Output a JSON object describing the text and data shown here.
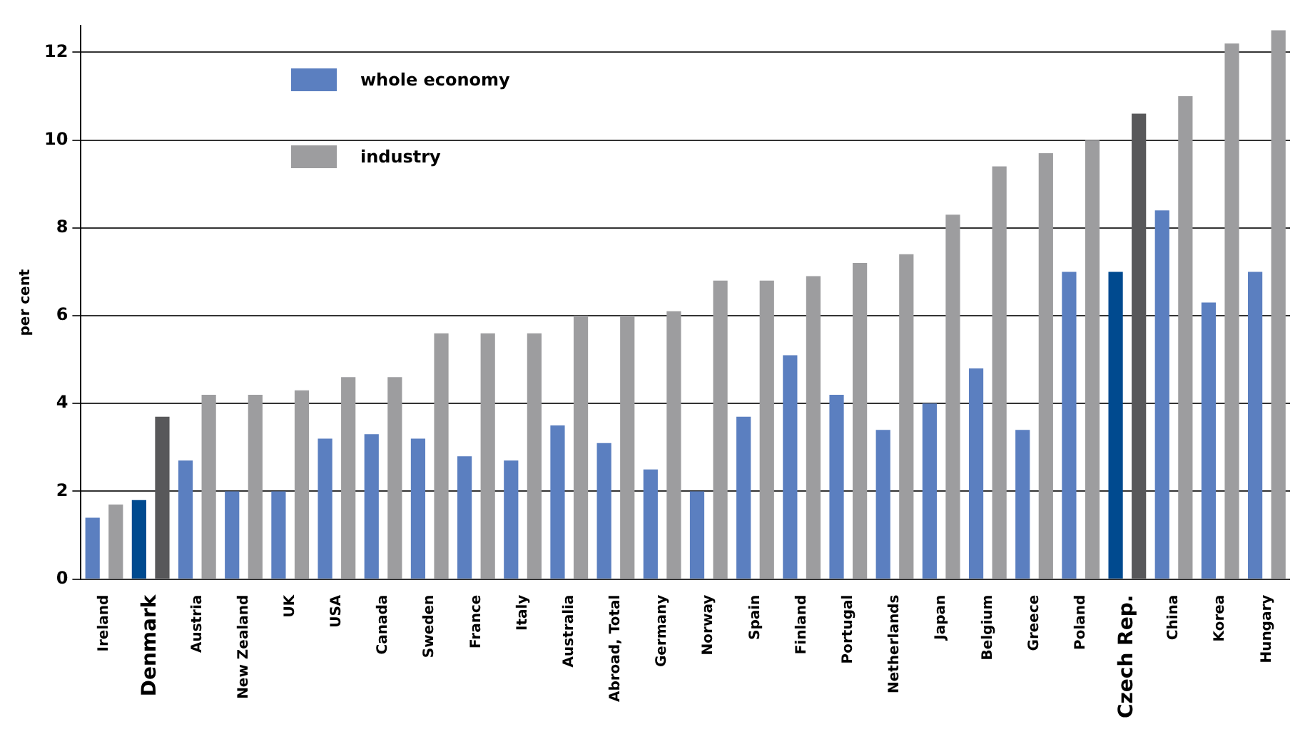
{
  "chart_data": {
    "type": "bar",
    "ylabel": "per cent",
    "categories": [
      "Ireland",
      "Denmark",
      "Austria",
      "New Zealand",
      "UK",
      "USA",
      "Canada",
      "Sweden",
      "France",
      "Italy",
      "Australia",
      "Abroad, Total",
      "Germany",
      "Norway",
      "Spain",
      "Finland",
      "Portugal",
      "Netherlands",
      "Japan",
      "Belgium",
      "Greece",
      "Poland",
      "Czech Rep.",
      "China",
      "Korea",
      "Hungary"
    ],
    "series": [
      {
        "name": "whole economy",
        "color": "#5b7fc0",
        "colors": [
          "#5b7fc0",
          "#004a8f",
          "#5b7fc0",
          "#5b7fc0",
          "#5b7fc0",
          "#5b7fc0",
          "#5b7fc0",
          "#5b7fc0",
          "#5b7fc0",
          "#5b7fc0",
          "#5b7fc0",
          "#5b7fc0",
          "#5b7fc0",
          "#5b7fc0",
          "#5b7fc0",
          "#5b7fc0",
          "#5b7fc0",
          "#5b7fc0",
          "#5b7fc0",
          "#5b7fc0",
          "#5b7fc0",
          "#5b7fc0",
          "#004a8f",
          "#5b7fc0",
          "#5b7fc0",
          "#5b7fc0"
        ],
        "values": [
          1.4,
          1.8,
          2.7,
          2.0,
          2.0,
          3.2,
          3.3,
          3.2,
          2.8,
          2.7,
          3.5,
          3.1,
          2.5,
          2.0,
          3.7,
          5.1,
          4.2,
          3.4,
          4.0,
          4.8,
          3.4,
          7.0,
          7.0,
          8.4,
          6.3,
          7.0
        ]
      },
      {
        "name": "industry",
        "color": "#9d9d9f",
        "colors": [
          "#9d9d9f",
          "#58585a",
          "#9d9d9f",
          "#9d9d9f",
          "#9d9d9f",
          "#9d9d9f",
          "#9d9d9f",
          "#9d9d9f",
          "#9d9d9f",
          "#9d9d9f",
          "#9d9d9f",
          "#9d9d9f",
          "#9d9d9f",
          "#9d9d9f",
          "#9d9d9f",
          "#9d9d9f",
          "#9d9d9f",
          "#9d9d9f",
          "#9d9d9f",
          "#9d9d9f",
          "#9d9d9f",
          "#9d9d9f",
          "#58585a",
          "#9d9d9f",
          "#9d9d9f",
          "#9d9d9f"
        ],
        "values": [
          1.7,
          3.7,
          4.2,
          4.2,
          4.3,
          4.6,
          4.6,
          5.6,
          5.6,
          5.6,
          6.0,
          6.0,
          6.1,
          6.8,
          6.8,
          6.9,
          7.2,
          7.4,
          8.3,
          9.4,
          9.7,
          10.0,
          10.6,
          11.0,
          12.2,
          12.5
        ]
      }
    ],
    "ylim": [
      0,
      12.6
    ],
    "yticks": [
      0,
      2,
      4,
      6,
      8,
      10,
      12
    ],
    "grid": "y",
    "legend": "top left"
  }
}
